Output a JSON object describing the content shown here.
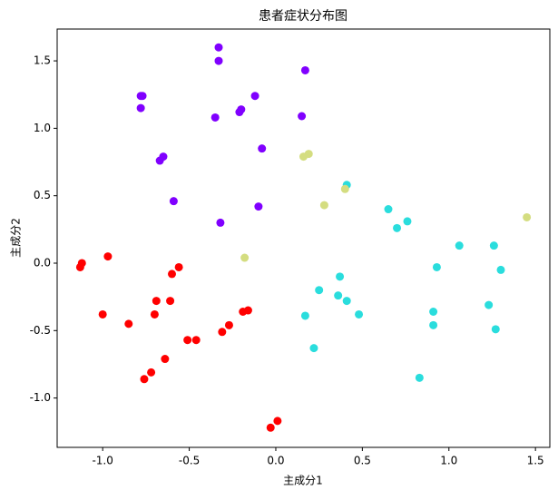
{
  "chart_data": {
    "type": "scatter",
    "title": "患者症状分布图",
    "x_label": "主成分1",
    "y_label": "主成分2",
    "xlim": [
      -1.263,
      1.583
    ],
    "ylim": [
      -1.366,
      1.736
    ],
    "xticks": [
      {
        "value": -1.0,
        "label": "-1.0"
      },
      -0.5,
      {
        "value": 0,
        "label": "0.0"
      },
      0.5,
      {
        "value": 1.0,
        "label": "1.0"
      },
      1.5
    ],
    "yticks": [
      {
        "value": -1.0,
        "label": "-1.0"
      },
      -0.5,
      {
        "value": 0,
        "label": "0.0"
      },
      0.5,
      {
        "value": 1.0,
        "label": "1.0"
      },
      1.5
    ],
    "series": [
      {
        "color": "#8000ff",
        "x": [
          -0.33,
          -0.33,
          0.17,
          -0.77,
          -0.78,
          -0.78,
          -0.12,
          -0.35,
          -0.2,
          -0.21,
          0.15,
          -0.08,
          -0.65,
          -0.67,
          -0.59,
          -0.1,
          -0.32
        ],
        "values": [
          1.6,
          1.5,
          1.43,
          1.24,
          1.24,
          1.15,
          1.24,
          1.08,
          1.14,
          1.12,
          1.09,
          0.85,
          0.79,
          0.76,
          0.46,
          0.42,
          0.3
        ]
      },
      {
        "color": "#2adddd",
        "x": [
          0.41,
          0.65,
          0.76,
          0.7,
          1.06,
          1.26,
          0.93,
          1.3,
          0.37,
          0.25,
          0.36,
          0.41,
          0.17,
          0.48,
          0.91,
          1.23,
          0.91,
          1.27,
          0.22,
          0.83
        ],
        "values": [
          0.58,
          0.4,
          0.31,
          0.26,
          0.13,
          0.13,
          -0.03,
          -0.05,
          -0.1,
          -0.2,
          -0.24,
          -0.28,
          -0.39,
          -0.38,
          -0.36,
          -0.31,
          -0.46,
          -0.49,
          -0.63,
          -0.85
        ]
      },
      {
        "color": "#d4dd80",
        "x": [
          0.16,
          0.19,
          0.28,
          0.4,
          -0.18,
          1.45
        ],
        "values": [
          0.79,
          0.81,
          0.43,
          0.55,
          0.04,
          0.34
        ]
      },
      {
        "color": "#ff0000",
        "x": [
          -1.12,
          -1.13,
          -0.97,
          -0.56,
          -0.6,
          -0.69,
          -0.61,
          -1.0,
          -0.7,
          -0.85,
          -0.27,
          -0.31,
          -0.51,
          -0.46,
          -0.16,
          -0.19,
          -0.64,
          -0.72,
          -0.76,
          0.01,
          -0.03
        ],
        "values": [
          0.0,
          -0.03,
          0.05,
          -0.03,
          -0.08,
          -0.28,
          -0.28,
          -0.38,
          -0.38,
          -0.45,
          -0.46,
          -0.51,
          -0.57,
          -0.57,
          -0.35,
          -0.36,
          -0.71,
          -0.81,
          -0.86,
          -1.17,
          -1.22
        ]
      }
    ]
  }
}
